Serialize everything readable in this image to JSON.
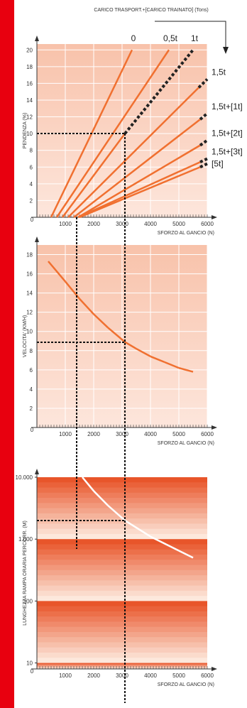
{
  "title": "CARICO TRASPORT.+[CARICO TRAINATO] (Tons)",
  "chart_data": [
    {
      "type": "line",
      "ylabel": "PENDENZA (%)",
      "xlabel": "SFORZO AL GANCIO (N)",
      "xlim": [
        0,
        6000
      ],
      "xticks": [
        0,
        1000,
        2000,
        3000,
        4000,
        5000,
        6000
      ],
      "ylim": [
        0,
        20.7
      ],
      "yticks": [
        2,
        4,
        6,
        8,
        10,
        12,
        14,
        16,
        18,
        20
      ],
      "grid": true,
      "series": [
        {
          "name": "0",
          "color": "#f07030",
          "x": [
            500,
            3350
          ],
          "values": [
            0,
            20
          ],
          "segment_styles": [
            "solid"
          ]
        },
        {
          "name": "0,5t",
          "color": "#f07030",
          "x": [
            700,
            4650
          ],
          "values": [
            0,
            20
          ],
          "segment_styles": [
            "solid"
          ]
        },
        {
          "name": "1t",
          "color": "#f07030",
          "x": [
            900,
            3100,
            5500
          ],
          "values": [
            0,
            10,
            20
          ],
          "segment_styles": [
            "solid",
            "dashed"
          ]
        },
        {
          "name": "1,5t",
          "color": "#f07030",
          "x": [
            1100,
            5700,
            6000
          ],
          "values": [
            0,
            15.5,
            16.5
          ],
          "segment_styles": [
            "solid",
            "dashed"
          ]
        },
        {
          "name": "1,5t+[1t]",
          "color": "#f07030",
          "x": [
            1300,
            5750,
            6000
          ],
          "values": [
            0,
            11.7,
            12.4
          ],
          "segment_styles": [
            "solid",
            "dashed"
          ]
        },
        {
          "name": "1,5t+[2t]",
          "color": "#f07030",
          "x": [
            1450,
            5750,
            6000
          ],
          "values": [
            0,
            8.6,
            9.2
          ],
          "segment_styles": [
            "solid",
            "dashed"
          ]
        },
        {
          "name": "1,5t+[3t]",
          "color": "#f07030",
          "x": [
            1450,
            5750,
            6000
          ],
          "values": [
            0,
            6.6,
            7.0
          ],
          "segment_styles": [
            "solid",
            "dashed"
          ]
        },
        {
          "name": "[5t]",
          "color": "#f07030",
          "x": [
            1500,
            5750,
            6000
          ],
          "values": [
            0,
            6.0,
            6.4
          ],
          "segment_styles": [
            "solid",
            "dashed"
          ]
        }
      ]
    },
    {
      "type": "line",
      "ylabel": "VELOCITA' (KM/H)",
      "xlabel": "SFORZO AL GANCIO (N)",
      "xlim": [
        0,
        6000
      ],
      "xticks": [
        0,
        1000,
        2000,
        3000,
        4000,
        5000,
        6000
      ],
      "ylim": [
        0,
        19
      ],
      "yticks": [
        2,
        4,
        6,
        8,
        10,
        12,
        14,
        16,
        18
      ],
      "grid": true,
      "series": [
        {
          "color": "#f07030",
          "x": [
            400,
            1000,
            1500,
            2000,
            2500,
            3100,
            3500,
            4000,
            4500,
            5000,
            5500
          ],
          "values": [
            17.3,
            15.2,
            13.4,
            11.8,
            10.4,
            8.9,
            8.2,
            7.4,
            6.8,
            6.2,
            5.8
          ]
        }
      ]
    },
    {
      "type": "line",
      "ylabel": "LUNGHEZZA RAMPA ORARIA PERCORR. (M)",
      "xlabel": "SFORZO AL GANCIO (N)",
      "xlim": [
        0,
        6000
      ],
      "xticks": [
        0,
        1000,
        2000,
        3000,
        4000,
        5000,
        6000
      ],
      "ylim": [
        8,
        10000
      ],
      "log_scale": true,
      "yticks": [
        {
          "value": 10000,
          "label": "10.000"
        },
        {
          "value": 1000,
          "label": "1.000"
        },
        100,
        10
      ],
      "series": [
        {
          "color": "#ffffff",
          "x": [
            1600,
            2000,
            2500,
            3100,
            4000,
            5000,
            5500
          ],
          "values": [
            10000,
            6000,
            3500,
            2000,
            1100,
            650,
            500
          ]
        }
      ]
    }
  ]
}
